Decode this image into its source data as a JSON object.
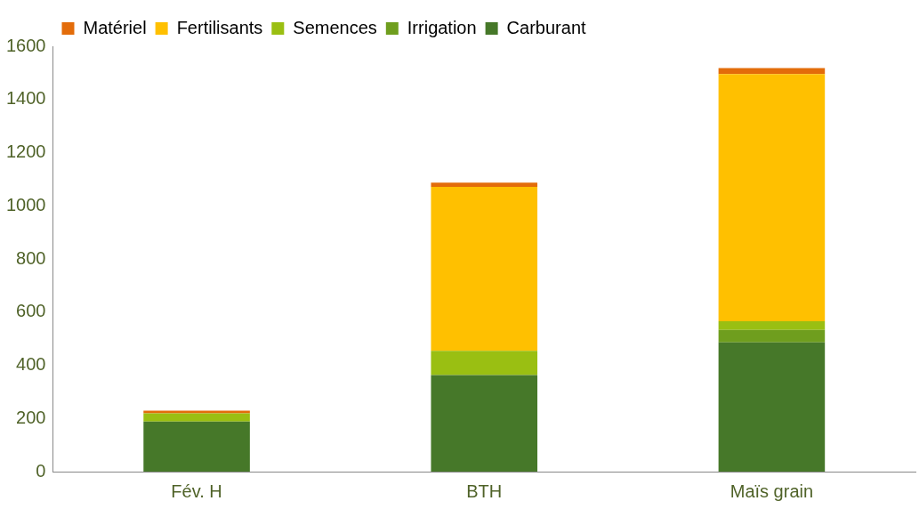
{
  "chart_data": {
    "type": "bar",
    "stacked": true,
    "categories": [
      "Fév. H",
      "BTH",
      "Maïs grain"
    ],
    "series": [
      {
        "name": "Carburant",
        "color": "#467829",
        "values": [
          188,
          363,
          486
        ]
      },
      {
        "name": "Irrigation",
        "color": "#6f9e1e",
        "values": [
          0,
          0,
          47
        ]
      },
      {
        "name": "Semences",
        "color": "#9abf12",
        "values": [
          31,
          91,
          33
        ]
      },
      {
        "name": "Fertilisants",
        "color": "#ffc000",
        "values": [
          0,
          617,
          929
        ]
      },
      {
        "name": "Matériel",
        "color": "#e36c0a",
        "values": [
          10,
          16,
          23
        ]
      }
    ],
    "ylim": [
      0,
      1600
    ],
    "yticks": [
      0,
      200,
      400,
      600,
      800,
      1000,
      1200,
      1400,
      1600
    ],
    "grid": false,
    "legend": "top left"
  }
}
